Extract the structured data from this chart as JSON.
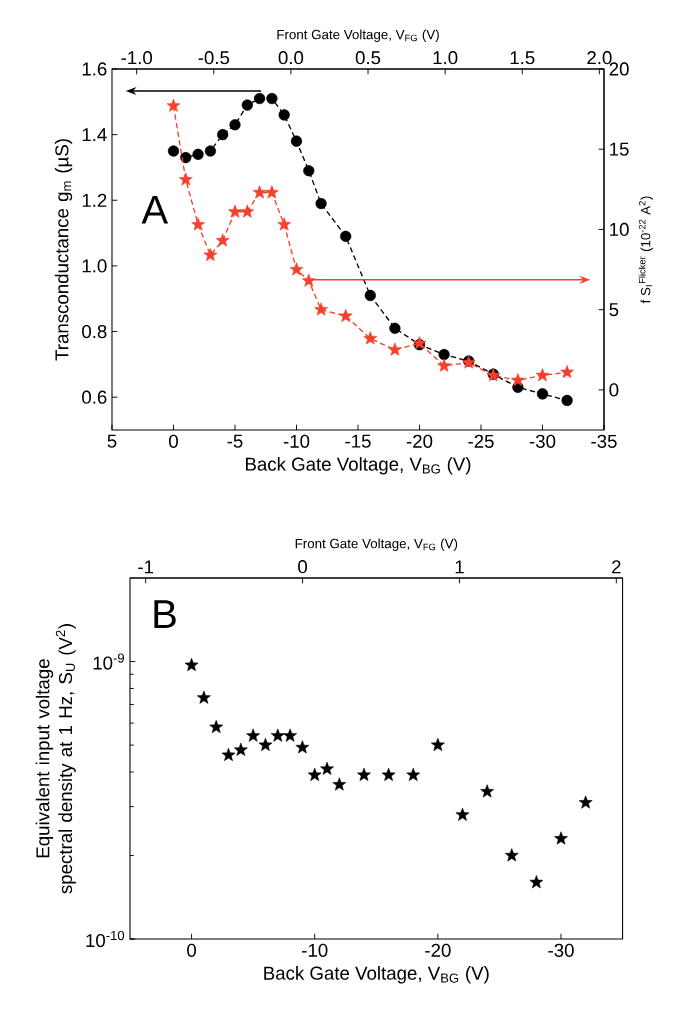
{
  "chart_data": [
    {
      "type": "line",
      "annotations": [
        "A"
      ],
      "xlabel": "Back Gate Voltage, V$_{BG}$ (V)",
      "x2label": "Front Gate Voltage, V$_{FG}$ (V)",
      "ylabel": "Transconductance g$_{m}$ (µS)",
      "y2label": "f S$_{I}$$^{Flicker}$ (10$^{-22}$ A$^{2}$)",
      "x": [
        0,
        -1,
        -2,
        -3,
        -4,
        -5,
        -6,
        -7,
        -8,
        -9,
        -10,
        -11,
        -12,
        -14,
        -16,
        -18,
        -20,
        -22,
        -24,
        -26,
        -28,
        -30,
        -32
      ],
      "xlim": [
        5,
        -35
      ],
      "xticks": [
        5,
        0,
        -5,
        -10,
        -15,
        -20,
        -25,
        -30,
        -35
      ],
      "x2lim": [
        -1.16,
        2.03
      ],
      "x2ticks": [
        {
          "value": -1,
          "label": "-1.0"
        },
        -0.5,
        {
          "value": 0,
          "label": "0.0"
        },
        0.5,
        {
          "value": 1,
          "label": "1.0"
        },
        1.5,
        {
          "value": 2,
          "label": "2.0"
        }
      ],
      "ylim": [
        0.5,
        1.6
      ],
      "yticks": [
        0.6,
        0.8,
        {
          "value": 1,
          "label": "1.0"
        },
        1.2,
        1.4,
        1.6
      ],
      "y2lim": [
        -2.5,
        20
      ],
      "y2ticks": [
        0,
        5,
        10,
        15,
        20
      ],
      "series": [
        {
          "color": "#000000",
          "marker": "circle",
          "line_style": "dashed",
          "values": [
            1.35,
            1.33,
            1.34,
            1.35,
            1.4,
            1.43,
            1.49,
            1.51,
            1.51,
            1.46,
            1.38,
            1.29,
            1.19,
            1.09,
            0.91,
            0.81,
            0.76,
            0.73,
            0.71,
            0.67,
            0.63,
            0.61,
            0.59
          ]
        },
        {
          "color": "#f4402c",
          "marker": "star",
          "line_style": "dashed",
          "axis": "y2",
          "values": [
            17.7,
            13.1,
            10.3,
            8.4,
            9.3,
            11.1,
            11.1,
            12.3,
            12.3,
            10.3,
            7.5,
            6.8,
            5.0,
            4.6,
            3.2,
            2.5,
            2.9,
            1.5,
            1.7,
            0.9,
            0.6,
            0.9,
            1.1
          ]
        }
      ]
    },
    {
      "type": "scatter",
      "annotations": [
        "B"
      ],
      "xlabel": "Back Gate Voltage, V$_{BG}$ (V)",
      "x2label": "Front Gate Voltage, V$_{FG}$ (V)",
      "ylabel": "Equivalent input voltage spectral density at 1 Hz, S$_{U}$ (V$^{2}$)",
      "x": [
        0,
        -1,
        -2,
        -3,
        -4,
        -5,
        -6,
        -7,
        -8,
        -9,
        -10,
        -11,
        -12,
        -14,
        -16,
        -18,
        -20,
        -22,
        -24,
        -26,
        -28,
        -30,
        -32
      ],
      "xlim": [
        5,
        -35
      ],
      "xticks": [
        0,
        -10,
        -20,
        -30
      ],
      "x2lim": [
        -1.1,
        2.04
      ],
      "x2ticks": [
        -1,
        0,
        1,
        2
      ],
      "log": "y",
      "ylim": [
        1e-10,
        2e-09
      ],
      "yticks": [
        {
          "value": 1e-10,
          "label": "10$^{-10}$"
        },
        {
          "value": 1e-09,
          "label": "10$^{-9}$"
        }
      ],
      "color": "#000000",
      "marker": "star",
      "values": [
        9.7e-10,
        7.4e-10,
        5.8e-10,
        4.6e-10,
        4.8e-10,
        5.4e-10,
        5e-10,
        5.4e-10,
        5.4e-10,
        4.9e-10,
        3.9e-10,
        4.1e-10,
        3.6e-10,
        3.9e-10,
        3.9e-10,
        3.9e-10,
        5e-10,
        2.8e-10,
        3.4e-10,
        2e-10,
        1.6e-10,
        2.3e-10,
        3.1e-10
      ]
    }
  ]
}
